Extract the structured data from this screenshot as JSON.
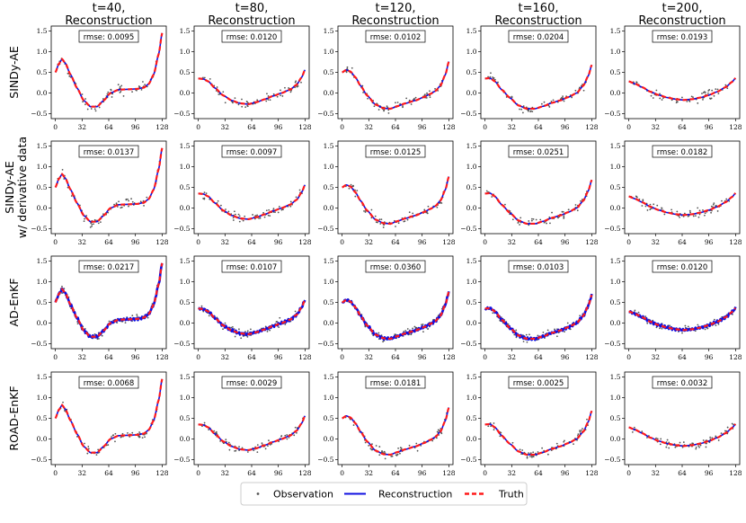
{
  "chart_data": {
    "type": "line",
    "columns": [
      "t=40,\nReconstruction",
      "t=80,\nReconstruction",
      "t=120,\nReconstruction",
      "t=160,\nReconstruction",
      "t=200,\nReconstruction"
    ],
    "column_titles": [
      {
        "line1": "t=40,",
        "line2": "Reconstruction"
      },
      {
        "line1": "t=80,",
        "line2": "Reconstruction"
      },
      {
        "line1": "t=120,",
        "line2": "Reconstruction"
      },
      {
        "line1": "t=160,",
        "line2": "Reconstruction"
      },
      {
        "line1": "t=200,",
        "line2": "Reconstruction"
      }
    ],
    "rows": [
      {
        "label_lines": [
          "SINDy-AE"
        ],
        "rmse": [
          "0.0095",
          "0.0120",
          "0.0102",
          "0.0204",
          "0.0193"
        ],
        "noisy": false
      },
      {
        "label_lines": [
          "SINDy-AE",
          "w/ derivative data"
        ],
        "rmse": [
          "0.0137",
          "0.0097",
          "0.0125",
          "0.0251",
          "0.0182"
        ],
        "noisy": false
      },
      {
        "label_lines": [
          "AD-EnKF"
        ],
        "rmse": [
          "0.0217",
          "0.0107",
          "0.0360",
          "0.0103",
          "0.0120"
        ],
        "noisy": true
      },
      {
        "label_lines": [
          "ROAD-EnKF"
        ],
        "rmse": [
          "0.0068",
          "0.0029",
          "0.0181",
          "0.0025",
          "0.0032"
        ],
        "noisy": false
      }
    ],
    "rmse_prefix": "rmse: ",
    "x_ticks": [
      0,
      32,
      64,
      96,
      128
    ],
    "x_tick_labels": [
      "0",
      "32",
      "64",
      "96",
      "128"
    ],
    "xlim": [
      -5,
      133
    ],
    "y_ticks": [
      -0.5,
      0.0,
      0.5,
      1.0,
      1.5
    ],
    "y_tick_labels": [
      "−0.5",
      "0.0",
      "0.5",
      "1.0",
      "1.5"
    ],
    "ylim": [
      -0.62,
      1.62
    ],
    "truth_curves": [
      [
        [
          0,
          0.5
        ],
        [
          4,
          0.7
        ],
        [
          8,
          0.82
        ],
        [
          12,
          0.72
        ],
        [
          18,
          0.45
        ],
        [
          26,
          0.12
        ],
        [
          34,
          -0.18
        ],
        [
          42,
          -0.33
        ],
        [
          50,
          -0.33
        ],
        [
          58,
          -0.18
        ],
        [
          66,
          0.0
        ],
        [
          76,
          0.08
        ],
        [
          88,
          0.09
        ],
        [
          98,
          0.1
        ],
        [
          106,
          0.13
        ],
        [
          112,
          0.22
        ],
        [
          118,
          0.45
        ],
        [
          124,
          0.95
        ],
        [
          128,
          1.45
        ]
      ],
      [
        [
          0,
          0.35
        ],
        [
          6,
          0.34
        ],
        [
          12,
          0.28
        ],
        [
          20,
          0.12
        ],
        [
          30,
          -0.06
        ],
        [
          40,
          -0.18
        ],
        [
          50,
          -0.25
        ],
        [
          60,
          -0.27
        ],
        [
          70,
          -0.22
        ],
        [
          80,
          -0.15
        ],
        [
          90,
          -0.07
        ],
        [
          100,
          0.0
        ],
        [
          110,
          0.08
        ],
        [
          118,
          0.2
        ],
        [
          124,
          0.38
        ],
        [
          128,
          0.56
        ]
      ],
      [
        [
          0,
          0.5
        ],
        [
          5,
          0.56
        ],
        [
          10,
          0.52
        ],
        [
          16,
          0.38
        ],
        [
          22,
          0.18
        ],
        [
          30,
          -0.06
        ],
        [
          40,
          -0.28
        ],
        [
          50,
          -0.37
        ],
        [
          58,
          -0.38
        ],
        [
          66,
          -0.32
        ],
        [
          76,
          -0.25
        ],
        [
          88,
          -0.18
        ],
        [
          98,
          -0.1
        ],
        [
          106,
          -0.02
        ],
        [
          112,
          0.05
        ],
        [
          118,
          0.18
        ],
        [
          124,
          0.45
        ],
        [
          128,
          0.76
        ]
      ],
      [
        [
          0,
          0.35
        ],
        [
          6,
          0.36
        ],
        [
          12,
          0.28
        ],
        [
          20,
          0.08
        ],
        [
          30,
          -0.12
        ],
        [
          40,
          -0.3
        ],
        [
          50,
          -0.38
        ],
        [
          60,
          -0.38
        ],
        [
          70,
          -0.32
        ],
        [
          80,
          -0.24
        ],
        [
          90,
          -0.18
        ],
        [
          100,
          -0.1
        ],
        [
          110,
          0.0
        ],
        [
          118,
          0.18
        ],
        [
          124,
          0.42
        ],
        [
          128,
          0.68
        ]
      ],
      [
        [
          0,
          0.28
        ],
        [
          8,
          0.22
        ],
        [
          16,
          0.14
        ],
        [
          26,
          0.03
        ],
        [
          36,
          -0.05
        ],
        [
          46,
          -0.11
        ],
        [
          56,
          -0.15
        ],
        [
          66,
          -0.17
        ],
        [
          76,
          -0.15
        ],
        [
          86,
          -0.11
        ],
        [
          96,
          -0.05
        ],
        [
          106,
          0.03
        ],
        [
          116,
          0.14
        ],
        [
          124,
          0.27
        ],
        [
          128,
          0.36
        ]
      ]
    ],
    "legend": {
      "entries": [
        "Observation",
        "Reconstruction",
        "Truth"
      ],
      "placement": "bottom-center"
    },
    "colors": {
      "observation": "#555555",
      "reconstruction": "#1010e0",
      "truth": "#ff1a1a",
      "frame": "#000000"
    }
  }
}
